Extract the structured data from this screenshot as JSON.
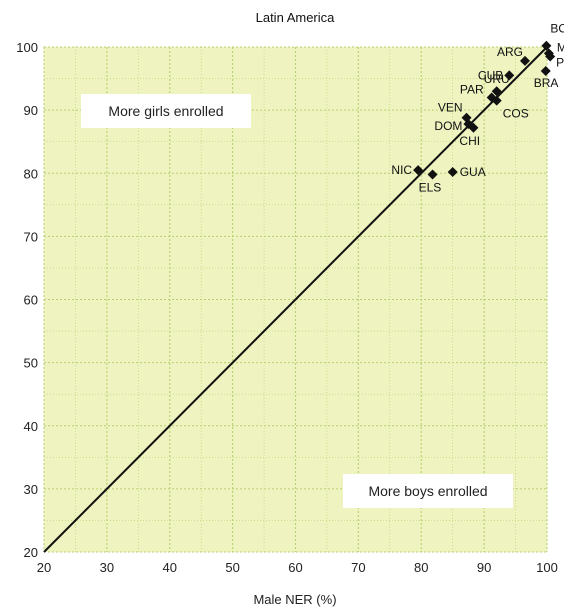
{
  "chart_data": {
    "type": "scatter",
    "title": "Latin America",
    "xlabel": "Male NER (%)",
    "ylabel": "",
    "xlim": [
      20,
      100
    ],
    "ylim": [
      20,
      100
    ],
    "xticks": [
      20,
      30,
      40,
      50,
      60,
      70,
      80,
      90,
      100
    ],
    "yticks": [
      20,
      30,
      40,
      50,
      60,
      70,
      80,
      90,
      100
    ],
    "grid": true,
    "background_color": "#eef3c0",
    "grid_color": "#b8d070",
    "diagonal_line": true,
    "regions": [
      {
        "label": "More girls enrolled",
        "position": "upper-left"
      },
      {
        "label": "More boys enrolled",
        "position": "lower-right"
      }
    ],
    "points": [
      {
        "label": "BOL",
        "x": 99.9,
        "y": 100.2
      },
      {
        "label": "MEX",
        "x": 100.3,
        "y": 99.0
      },
      {
        "label": "PER",
        "x": 100.5,
        "y": 98.5
      },
      {
        "label": "ARG",
        "x": 96.5,
        "y": 97.8
      },
      {
        "label": "BRA",
        "x": 99.8,
        "y": 96.2
      },
      {
        "label": "CUB",
        "x": 94.0,
        "y": 95.5
      },
      {
        "label": "URU",
        "x": 92.0,
        "y": 93.0
      },
      {
        "label": "PAR",
        "x": 91.2,
        "y": 92.0
      },
      {
        "label": "COS",
        "x": 92.0,
        "y": 91.5
      },
      {
        "label": "VEN",
        "x": 87.2,
        "y": 88.8
      },
      {
        "label": "DOM",
        "x": 87.5,
        "y": 87.8
      },
      {
        "label": "CHI",
        "x": 88.3,
        "y": 87.2
      },
      {
        "label": "NIC",
        "x": 79.5,
        "y": 80.5
      },
      {
        "label": "ELS",
        "x": 81.8,
        "y": 79.8
      },
      {
        "label": "GUA",
        "x": 85.0,
        "y": 80.2
      }
    ]
  }
}
